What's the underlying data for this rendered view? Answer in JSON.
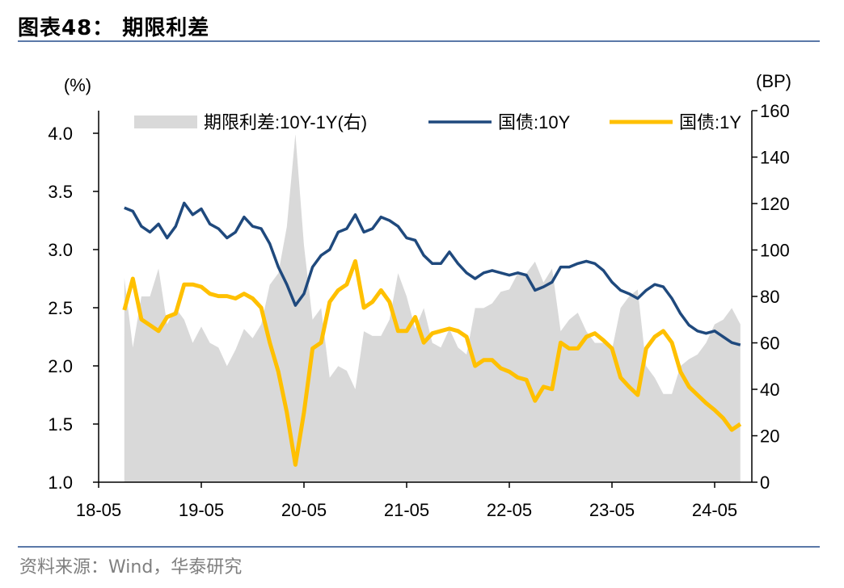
{
  "header": {
    "title": "图表48：   期限利差"
  },
  "footer": {
    "source": "资料来源：Wind，华泰研究"
  },
  "chart_data": {
    "type": "line",
    "left_axis": {
      "unit_label": "(%)",
      "range": [
        1.0,
        4.0
      ],
      "ticks": [
        "1.0",
        "1.5",
        "2.0",
        "2.5",
        "3.0",
        "3.5",
        "4.0"
      ]
    },
    "right_axis": {
      "unit_label": "(BP)",
      "range": [
        0,
        160
      ],
      "ticks": [
        "0",
        "20",
        "40",
        "60",
        "80",
        "100",
        "120",
        "140",
        "160"
      ]
    },
    "x_axis": {
      "ticks": [
        "18-05",
        "19-05",
        "20-05",
        "21-05",
        "22-05",
        "23-05",
        "24-05"
      ]
    },
    "grid": false,
    "legend_placement": "top",
    "legend": [
      {
        "label": "期限利差:10Y-1Y(右)",
        "color": "#d9d9d9",
        "kind": "area"
      },
      {
        "label": "国债:10Y",
        "color": "#1f497d",
        "kind": "line"
      },
      {
        "label": "国债:1Y",
        "color": "#ffc000",
        "kind": "line"
      }
    ],
    "series": [
      {
        "name": "国债:10Y",
        "axis": "left",
        "type": "line",
        "color": "#1f497d",
        "points": [
          [
            "2018-08",
            3.36
          ],
          [
            "2018-09",
            3.33
          ],
          [
            "2018-10",
            3.2
          ],
          [
            "2018-11",
            3.15
          ],
          [
            "2018-12",
            3.22
          ],
          [
            "2019-01",
            3.1
          ],
          [
            "2019-02",
            3.2
          ],
          [
            "2019-03",
            3.4
          ],
          [
            "2019-04",
            3.3
          ],
          [
            "2019-05",
            3.35
          ],
          [
            "2019-06",
            3.22
          ],
          [
            "2019-07",
            3.18
          ],
          [
            "2019-08",
            3.1
          ],
          [
            "2019-09",
            3.15
          ],
          [
            "2019-10",
            3.28
          ],
          [
            "2019-11",
            3.2
          ],
          [
            "2019-12",
            3.18
          ],
          [
            "2020-01",
            3.05
          ],
          [
            "2020-02",
            2.85
          ],
          [
            "2020-03",
            2.7
          ],
          [
            "2020-04",
            2.52
          ],
          [
            "2020-05",
            2.62
          ],
          [
            "2020-06",
            2.85
          ],
          [
            "2020-07",
            2.95
          ],
          [
            "2020-08",
            3.0
          ],
          [
            "2020-09",
            3.15
          ],
          [
            "2020-10",
            3.18
          ],
          [
            "2020-11",
            3.3
          ],
          [
            "2020-12",
            3.15
          ],
          [
            "2021-01",
            3.18
          ],
          [
            "2021-02",
            3.28
          ],
          [
            "2021-03",
            3.25
          ],
          [
            "2021-04",
            3.2
          ],
          [
            "2021-05",
            3.1
          ],
          [
            "2021-06",
            3.08
          ],
          [
            "2021-07",
            2.95
          ],
          [
            "2021-08",
            2.88
          ],
          [
            "2021-09",
            2.88
          ],
          [
            "2021-10",
            2.98
          ],
          [
            "2021-11",
            2.88
          ],
          [
            "2021-12",
            2.8
          ],
          [
            "2022-01",
            2.75
          ],
          [
            "2022-02",
            2.8
          ],
          [
            "2022-03",
            2.82
          ],
          [
            "2022-04",
            2.8
          ],
          [
            "2022-05",
            2.78
          ],
          [
            "2022-06",
            2.8
          ],
          [
            "2022-07",
            2.78
          ],
          [
            "2022-08",
            2.65
          ],
          [
            "2022-09",
            2.68
          ],
          [
            "2022-10",
            2.72
          ],
          [
            "2022-11",
            2.85
          ],
          [
            "2022-12",
            2.85
          ],
          [
            "2023-01",
            2.88
          ],
          [
            "2023-02",
            2.9
          ],
          [
            "2023-03",
            2.88
          ],
          [
            "2023-04",
            2.82
          ],
          [
            "2023-05",
            2.72
          ],
          [
            "2023-06",
            2.65
          ],
          [
            "2023-07",
            2.62
          ],
          [
            "2023-08",
            2.58
          ],
          [
            "2023-09",
            2.65
          ],
          [
            "2023-10",
            2.7
          ],
          [
            "2023-11",
            2.68
          ],
          [
            "2023-12",
            2.58
          ],
          [
            "2024-01",
            2.45
          ],
          [
            "2024-02",
            2.35
          ],
          [
            "2024-03",
            2.3
          ],
          [
            "2024-04",
            2.28
          ],
          [
            "2024-05",
            2.3
          ],
          [
            "2024-06",
            2.25
          ],
          [
            "2024-07",
            2.2
          ],
          [
            "2024-08",
            2.18
          ]
        ]
      },
      {
        "name": "国债:1Y",
        "axis": "left",
        "type": "line",
        "color": "#ffc000",
        "points": [
          [
            "2018-08",
            2.48
          ],
          [
            "2018-09",
            2.75
          ],
          [
            "2018-10",
            2.4
          ],
          [
            "2018-11",
            2.35
          ],
          [
            "2018-12",
            2.3
          ],
          [
            "2019-01",
            2.42
          ],
          [
            "2019-02",
            2.45
          ],
          [
            "2019-03",
            2.7
          ],
          [
            "2019-04",
            2.7
          ],
          [
            "2019-05",
            2.68
          ],
          [
            "2019-06",
            2.62
          ],
          [
            "2019-07",
            2.6
          ],
          [
            "2019-08",
            2.6
          ],
          [
            "2019-09",
            2.58
          ],
          [
            "2019-10",
            2.62
          ],
          [
            "2019-11",
            2.58
          ],
          [
            "2019-12",
            2.5
          ],
          [
            "2020-01",
            2.2
          ],
          [
            "2020-02",
            1.95
          ],
          [
            "2020-03",
            1.6
          ],
          [
            "2020-04",
            1.15
          ],
          [
            "2020-05",
            1.6
          ],
          [
            "2020-06",
            2.15
          ],
          [
            "2020-07",
            2.2
          ],
          [
            "2020-08",
            2.55
          ],
          [
            "2020-09",
            2.65
          ],
          [
            "2020-10",
            2.7
          ],
          [
            "2020-11",
            2.9
          ],
          [
            "2020-12",
            2.5
          ],
          [
            "2021-01",
            2.55
          ],
          [
            "2021-02",
            2.65
          ],
          [
            "2021-03",
            2.55
          ],
          [
            "2021-04",
            2.3
          ],
          [
            "2021-05",
            2.3
          ],
          [
            "2021-06",
            2.42
          ],
          [
            "2021-07",
            2.2
          ],
          [
            "2021-08",
            2.28
          ],
          [
            "2021-09",
            2.3
          ],
          [
            "2021-10",
            2.32
          ],
          [
            "2021-11",
            2.3
          ],
          [
            "2021-12",
            2.25
          ],
          [
            "2022-01",
            2.0
          ],
          [
            "2022-02",
            2.05
          ],
          [
            "2022-03",
            2.05
          ],
          [
            "2022-04",
            1.98
          ],
          [
            "2022-05",
            1.95
          ],
          [
            "2022-06",
            1.9
          ],
          [
            "2022-07",
            1.88
          ],
          [
            "2022-08",
            1.7
          ],
          [
            "2022-09",
            1.82
          ],
          [
            "2022-10",
            1.8
          ],
          [
            "2022-11",
            2.2
          ],
          [
            "2022-12",
            2.15
          ],
          [
            "2023-01",
            2.15
          ],
          [
            "2023-02",
            2.25
          ],
          [
            "2023-03",
            2.28
          ],
          [
            "2023-04",
            2.22
          ],
          [
            "2023-05",
            2.15
          ],
          [
            "2023-06",
            1.9
          ],
          [
            "2023-07",
            1.82
          ],
          [
            "2023-08",
            1.75
          ],
          [
            "2023-09",
            2.15
          ],
          [
            "2023-10",
            2.25
          ],
          [
            "2023-11",
            2.3
          ],
          [
            "2023-12",
            2.2
          ],
          [
            "2024-01",
            1.95
          ],
          [
            "2024-02",
            1.82
          ],
          [
            "2024-03",
            1.75
          ],
          [
            "2024-04",
            1.68
          ],
          [
            "2024-05",
            1.62
          ],
          [
            "2024-06",
            1.55
          ],
          [
            "2024-07",
            1.45
          ],
          [
            "2024-08",
            1.5
          ]
        ]
      },
      {
        "name": "期限利差:10Y-1Y(右)",
        "axis": "right",
        "type": "area",
        "color": "#d9d9d9",
        "points": [
          [
            "2018-08",
            88
          ],
          [
            "2018-09",
            58
          ],
          [
            "2018-10",
            80
          ],
          [
            "2018-11",
            80
          ],
          [
            "2018-12",
            92
          ],
          [
            "2019-01",
            68
          ],
          [
            "2019-02",
            75
          ],
          [
            "2019-03",
            70
          ],
          [
            "2019-04",
            60
          ],
          [
            "2019-05",
            67
          ],
          [
            "2019-06",
            60
          ],
          [
            "2019-07",
            58
          ],
          [
            "2019-08",
            50
          ],
          [
            "2019-09",
            57
          ],
          [
            "2019-10",
            66
          ],
          [
            "2019-11",
            62
          ],
          [
            "2019-12",
            68
          ],
          [
            "2020-01",
            85
          ],
          [
            "2020-02",
            90
          ],
          [
            "2020-03",
            110
          ],
          [
            "2020-04",
            150
          ],
          [
            "2020-05",
            102
          ],
          [
            "2020-06",
            70
          ],
          [
            "2020-07",
            75
          ],
          [
            "2020-08",
            45
          ],
          [
            "2020-09",
            50
          ],
          [
            "2020-10",
            48
          ],
          [
            "2020-11",
            40
          ],
          [
            "2020-12",
            65
          ],
          [
            "2021-01",
            63
          ],
          [
            "2021-02",
            63
          ],
          [
            "2021-03",
            70
          ],
          [
            "2021-04",
            90
          ],
          [
            "2021-05",
            80
          ],
          [
            "2021-06",
            66
          ],
          [
            "2021-07",
            75
          ],
          [
            "2021-08",
            60
          ],
          [
            "2021-09",
            58
          ],
          [
            "2021-10",
            66
          ],
          [
            "2021-11",
            58
          ],
          [
            "2021-12",
            55
          ],
          [
            "2022-01",
            75
          ],
          [
            "2022-02",
            75
          ],
          [
            "2022-03",
            77
          ],
          [
            "2022-04",
            82
          ],
          [
            "2022-05",
            83
          ],
          [
            "2022-06",
            90
          ],
          [
            "2022-07",
            90
          ],
          [
            "2022-08",
            95
          ],
          [
            "2022-09",
            86
          ],
          [
            "2022-10",
            92
          ],
          [
            "2022-11",
            65
          ],
          [
            "2022-12",
            70
          ],
          [
            "2023-01",
            73
          ],
          [
            "2023-02",
            65
          ],
          [
            "2023-03",
            60
          ],
          [
            "2023-04",
            60
          ],
          [
            "2023-05",
            57
          ],
          [
            "2023-06",
            75
          ],
          [
            "2023-07",
            80
          ],
          [
            "2023-08",
            83
          ],
          [
            "2023-09",
            50
          ],
          [
            "2023-10",
            45
          ],
          [
            "2023-11",
            38
          ],
          [
            "2023-12",
            38
          ],
          [
            "2024-01",
            50
          ],
          [
            "2024-02",
            53
          ],
          [
            "2024-03",
            55
          ],
          [
            "2024-04",
            60
          ],
          [
            "2024-05",
            68
          ],
          [
            "2024-06",
            70
          ],
          [
            "2024-07",
            75
          ],
          [
            "2024-08",
            68
          ]
        ]
      }
    ]
  }
}
